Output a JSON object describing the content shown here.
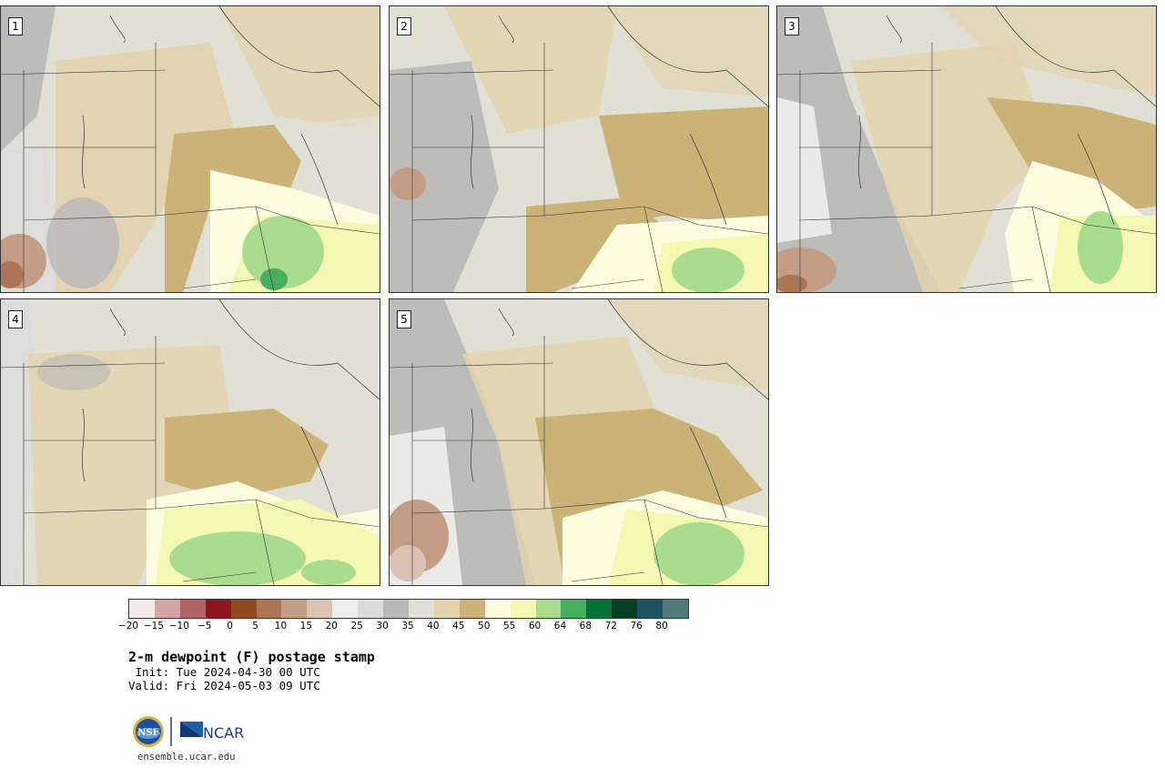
{
  "panels": [
    {
      "label": "1"
    },
    {
      "label": "2"
    },
    {
      "label": "3"
    },
    {
      "label": "4"
    },
    {
      "label": "5"
    }
  ],
  "colorbar": {
    "colors": [
      "#f3e9e6",
      "#d3a4a5",
      "#ae6563",
      "#8b1520",
      "#8f4b1f",
      "#ab7556",
      "#c39d86",
      "#dcc2b5",
      "#eeeeee",
      "#dbdbdb",
      "#b8b8b8",
      "#e1e0d5",
      "#e2d3ae",
      "#cbb377",
      "#fffde0",
      "#f5f8b2",
      "#a9dc8e",
      "#47ae5d",
      "#047238",
      "#063f24",
      "#1b5362",
      "#507a78"
    ],
    "ticks": [
      "−20",
      "−15",
      "−10",
      "−5",
      "0",
      "5",
      "10",
      "15",
      "20",
      "25",
      "30",
      "35",
      "40",
      "45",
      "50",
      "55",
      "60",
      "64",
      "68",
      "72",
      "76",
      "80"
    ]
  },
  "title": "2-m dewpoint (F) postage stamp",
  "init_line": " Init: Tue 2024-04-30 00 UTC",
  "valid_line": "Valid: Fri 2024-05-03 09 UTC",
  "logos": {
    "nsf": "NSF",
    "ncar": "NCAR"
  },
  "url": "ensemble.ucar.edu"
}
